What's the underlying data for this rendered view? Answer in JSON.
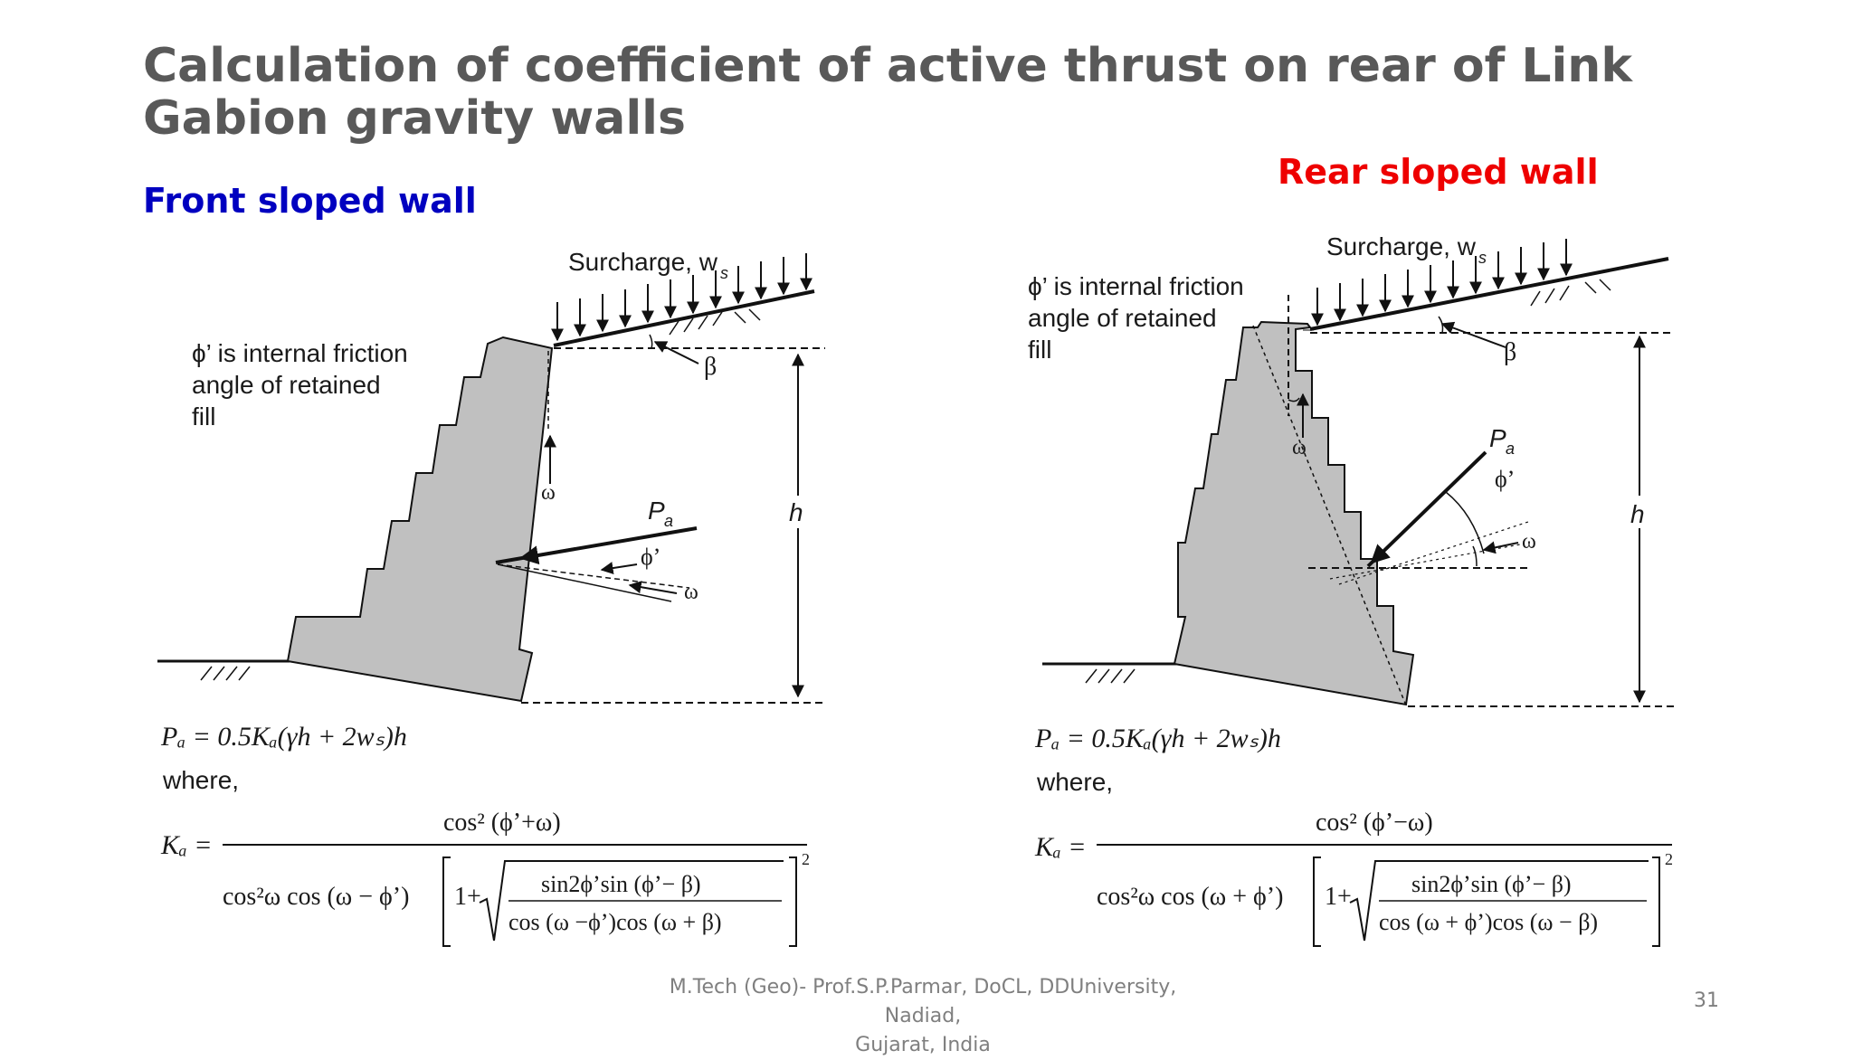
{
  "slide": {
    "title_line1": "Calculation of coefficient of active thrust on rear of Link",
    "title_line2": "Gabion gravity walls",
    "footer_line1": "M.Tech (Geo)- Prof.S.P.Parmar, DoCL, DDUniversity, Nadiad,",
    "footer_line2": "Gujarat, India",
    "page_number": "31"
  },
  "front": {
    "heading": "Front sloped wall",
    "surcharge_label": "Surcharge, w",
    "surcharge_sub": "s",
    "note_line1": "ϕ’ is internal friction",
    "note_line2": "angle of retained",
    "note_line3": "fill",
    "beta": "β",
    "omega": "ω",
    "phi": "ϕ’",
    "pa": "P",
    "pa_sub": "a",
    "h": "h",
    "eq_pa": "Pₐ = 0.5Kₐ(γh + 2wₛ)h",
    "where": "where,",
    "ka_lhs": "Kₐ =",
    "ka_num": "cos² (ϕ’+ω)",
    "ka_den_left": "cos²ω cos (ω − ϕ’)",
    "ka_one_plus": "1+",
    "ka_root_num": "sin2ϕ’sin (ϕ’− β)",
    "ka_root_den": "cos (ω −ϕ’)cos (ω + β)",
    "ka_power": "2"
  },
  "rear": {
    "heading": "Rear sloped wall",
    "surcharge_label": "Surcharge, w",
    "surcharge_sub": "s",
    "note_line1": "ϕ’ is internal friction",
    "note_line2": "angle of retained",
    "note_line3": "fill",
    "beta": "β",
    "omega": "ω",
    "omega2": "ω",
    "phi": "ϕ’",
    "pa": "P",
    "pa_sub": "a",
    "h": "h",
    "eq_pa": "Pₐ = 0.5Kₐ(γh + 2wₛ)h",
    "where": "where,",
    "ka_lhs": "Kₐ =",
    "ka_num": "cos² (ϕ’−ω)",
    "ka_den_left": "cos²ω cos (ω + ϕ’)",
    "ka_one_plus": "1+",
    "ka_root_num": "sin2ϕ’sin (ϕ’− β)",
    "ka_root_den": "cos (ω + ϕ’)cos (ω − β)",
    "ka_power": "2"
  },
  "colors": {
    "title": "#595959",
    "front_heading": "#0000c0",
    "rear_heading": "#ee0000",
    "wall_fill": "#c0c0c0",
    "footer": "#7f7f7f"
  }
}
